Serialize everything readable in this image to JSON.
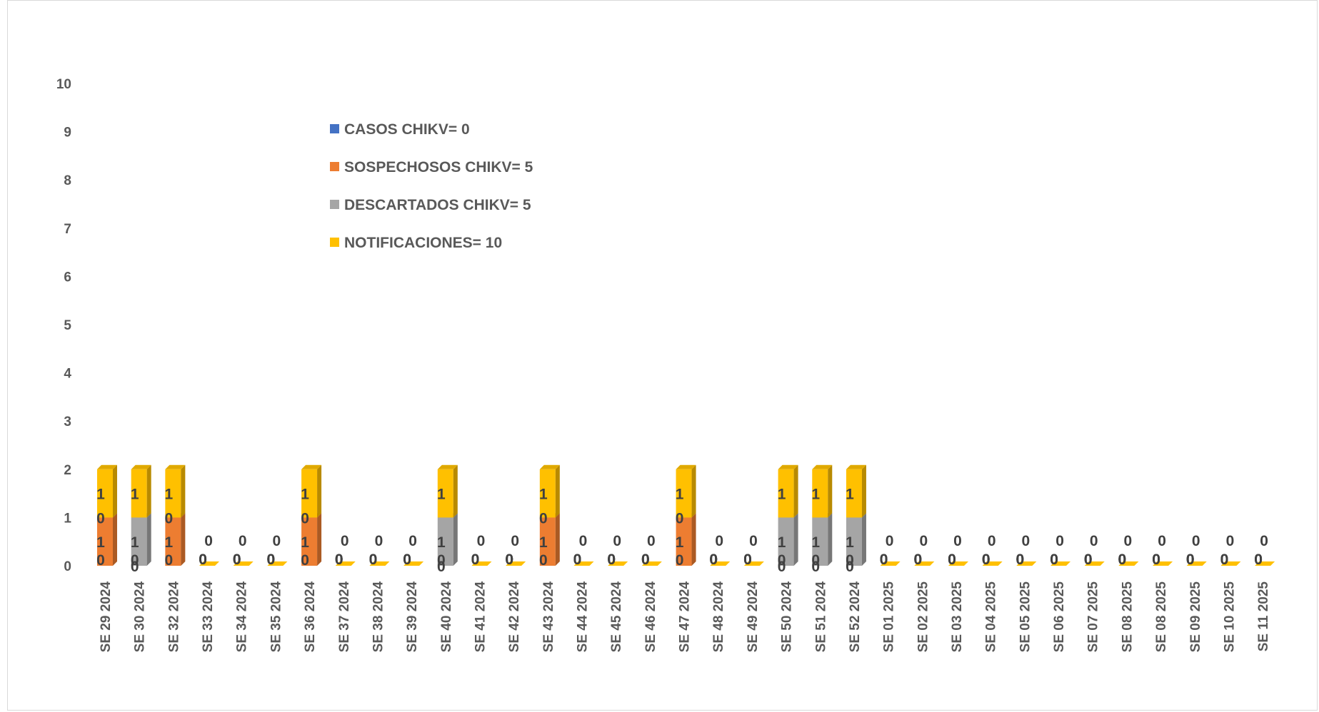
{
  "chart_data": {
    "type": "bar",
    "stacked": true,
    "three_d": true,
    "title": "",
    "xlabel": "",
    "ylabel": "",
    "ylim": [
      0,
      10
    ],
    "yticks": [
      0,
      1,
      2,
      3,
      4,
      5,
      6,
      7,
      8,
      9,
      10
    ],
    "grid": false,
    "legend_placement": "top-left inside plot",
    "categories": [
      "SE 29 2024",
      "SE 30 2024",
      "SE 32 2024",
      "SE 33 2024",
      "SE 34 2024",
      "SE 35 2024",
      "SE 36 2024",
      "SE 37 2024",
      "SE 38 2024",
      "SE 39 2024",
      "SE 40 2024",
      "SE 41 2024",
      "SE 42 2024",
      "SE 43 2024",
      "SE 44 2024",
      "SE 45 2024",
      "SE 46 2024",
      "SE 47 2024",
      "SE 48 2024",
      "SE 49 2024",
      "SE 50 2024",
      "SE 51 2024",
      "SE 52 2024",
      "SE 01 2025",
      "SE 02 2025",
      "SE 03 2025",
      "SE 04 2025",
      "SE 05 2025",
      "SE 06 2025",
      "SE 07 2025",
      "SE 08 2025",
      "SE 08 2025",
      "SE 09 2025",
      "SE 10 2025",
      "SE 11 2025"
    ],
    "series": [
      {
        "name": "CASOS CHIKV= 0",
        "color": "#4472C4",
        "values": [
          0,
          0,
          0,
          0,
          0,
          0,
          0,
          0,
          0,
          0,
          0,
          0,
          0,
          0,
          0,
          0,
          0,
          0,
          0,
          0,
          0,
          0,
          0,
          0,
          0,
          0,
          0,
          0,
          0,
          0,
          0,
          0,
          0,
          0,
          0
        ]
      },
      {
        "name": "SOSPECHOSOS CHIKV= 5",
        "color": "#ED7D31",
        "values": [
          1,
          0,
          1,
          0,
          0,
          0,
          1,
          0,
          0,
          0,
          0,
          0,
          0,
          1,
          0,
          0,
          0,
          1,
          0,
          0,
          0,
          0,
          0,
          0,
          0,
          0,
          0,
          0,
          0,
          0,
          0,
          0,
          0,
          0,
          0
        ]
      },
      {
        "name": "DESCARTADOS CHIKV= 5",
        "color": "#A5A5A5",
        "values": [
          0,
          1,
          0,
          0,
          0,
          0,
          0,
          0,
          0,
          0,
          1,
          0,
          0,
          0,
          0,
          0,
          0,
          0,
          0,
          0,
          1,
          1,
          1,
          0,
          0,
          0,
          0,
          0,
          0,
          0,
          0,
          0,
          0,
          0,
          0
        ]
      },
      {
        "name": "NOTIFICACIONES= 10",
        "color": "#FFC000",
        "values": [
          1,
          1,
          1,
          0,
          0,
          0,
          1,
          0,
          0,
          0,
          1,
          0,
          0,
          1,
          0,
          0,
          0,
          1,
          0,
          0,
          1,
          1,
          1,
          0,
          0,
          0,
          0,
          0,
          0,
          0,
          0,
          0,
          0,
          0,
          0
        ]
      }
    ]
  }
}
